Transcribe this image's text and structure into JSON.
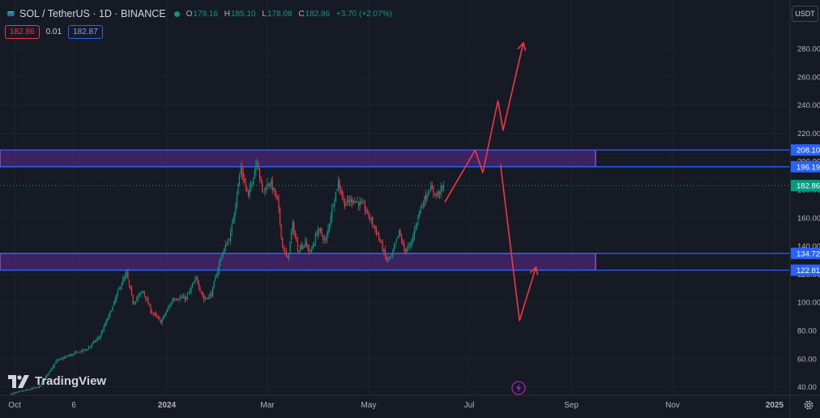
{
  "header": {
    "symbol_title": "SOL / TetherUS · 1D · BINANCE",
    "open_label": "O",
    "open": "179.16",
    "high_label": "H",
    "high": "185.10",
    "low_label": "L",
    "low": "178.08",
    "close_label": "C",
    "close": "182.86",
    "change": "+3.70 (+2.07%)"
  },
  "quote": {
    "bid": "182.86",
    "spread": "0.01",
    "ask": "182.87"
  },
  "currency_button": "USDT",
  "branding": "TradingView",
  "icons": [
    "sol-logo-icon",
    "green-dot-icon",
    "tradingview-logo-icon",
    "gear-icon",
    "flash-icon"
  ],
  "colors": {
    "background": "#161a25",
    "up": "#089981",
    "down": "#f23645",
    "zone_fill": "#7b2fbe",
    "zone_line": "#2962ff",
    "arrow": "#f23645"
  },
  "chart_data": {
    "type": "candlestick",
    "symbol": "SOL / TetherUS",
    "interval": "1D",
    "exchange": "BINANCE",
    "x_ticks": [
      "Oct",
      "6",
      "2024",
      "Mar",
      "May",
      "Jul",
      "Sep",
      "Nov",
      "2025"
    ],
    "y_ticks": [
      40,
      60,
      80,
      100,
      120,
      140,
      160,
      180,
      200,
      220,
      240,
      260,
      280
    ],
    "ylim": [
      35,
      298
    ],
    "last_price": 182.86,
    "price_labels": [
      {
        "value": 208.1,
        "text": "208.10",
        "kind": "level"
      },
      {
        "value": 196.19,
        "text": "196.19",
        "kind": "level"
      },
      {
        "value": 182.86,
        "text": "182.86",
        "kind": "last"
      },
      {
        "value": 134.72,
        "text": "134.72",
        "kind": "level"
      },
      {
        "value": 122.81,
        "text": "122.81",
        "kind": "level"
      }
    ],
    "zones": [
      {
        "name": "resistance",
        "top": 208.1,
        "bottom": 196.19
      },
      {
        "name": "support",
        "top": 134.72,
        "bottom": 122.81
      }
    ],
    "anchors": [
      {
        "d": 0,
        "p": 35
      },
      {
        "d": 22,
        "p": 40
      },
      {
        "d": 35,
        "p": 58
      },
      {
        "d": 45,
        "p": 62
      },
      {
        "d": 60,
        "p": 67
      },
      {
        "d": 70,
        "p": 76
      },
      {
        "d": 80,
        "p": 97
      },
      {
        "d": 86,
        "p": 112
      },
      {
        "d": 91,
        "p": 120
      },
      {
        "d": 96,
        "p": 100
      },
      {
        "d": 104,
        "p": 108
      },
      {
        "d": 110,
        "p": 94
      },
      {
        "d": 118,
        "p": 86
      },
      {
        "d": 128,
        "p": 103
      },
      {
        "d": 138,
        "p": 103
      },
      {
        "d": 146,
        "p": 117
      },
      {
        "d": 152,
        "p": 102
      },
      {
        "d": 158,
        "p": 106
      },
      {
        "d": 165,
        "p": 131
      },
      {
        "d": 173,
        "p": 148
      },
      {
        "d": 181,
        "p": 195
      },
      {
        "d": 187,
        "p": 175
      },
      {
        "d": 194,
        "p": 202
      },
      {
        "d": 198,
        "p": 178
      },
      {
        "d": 204,
        "p": 186
      },
      {
        "d": 210,
        "p": 172
      },
      {
        "d": 214,
        "p": 140
      },
      {
        "d": 218,
        "p": 130
      },
      {
        "d": 222,
        "p": 155
      },
      {
        "d": 226,
        "p": 138
      },
      {
        "d": 232,
        "p": 142
      },
      {
        "d": 236,
        "p": 135
      },
      {
        "d": 242,
        "p": 152
      },
      {
        "d": 248,
        "p": 143
      },
      {
        "d": 254,
        "p": 171
      },
      {
        "d": 258,
        "p": 185
      },
      {
        "d": 263,
        "p": 170
      },
      {
        "d": 270,
        "p": 173
      },
      {
        "d": 278,
        "p": 168
      },
      {
        "d": 284,
        "p": 158
      },
      {
        "d": 290,
        "p": 146
      },
      {
        "d": 296,
        "p": 130
      },
      {
        "d": 300,
        "p": 132
      },
      {
        "d": 306,
        "p": 150
      },
      {
        "d": 310,
        "p": 137
      },
      {
        "d": 315,
        "p": 140
      },
      {
        "d": 322,
        "p": 165
      },
      {
        "d": 330,
        "p": 181
      },
      {
        "d": 336,
        "p": 176
      },
      {
        "d": 341,
        "p": 183
      }
    ],
    "first_day": "2023-09-22",
    "scenario_path": [
      {
        "d": 342,
        "p": 171
      },
      {
        "d": 366,
        "p": 208
      },
      {
        "d": 372,
        "p": 192
      },
      {
        "d": 384,
        "p": 243
      },
      {
        "d": 388,
        "p": 222
      },
      {
        "d": 404,
        "p": 284
      }
    ],
    "drop_path": [
      {
        "d": 386,
        "p": 198
      },
      {
        "d": 401,
        "p": 87
      },
      {
        "d": 414,
        "p": 125
      }
    ]
  }
}
